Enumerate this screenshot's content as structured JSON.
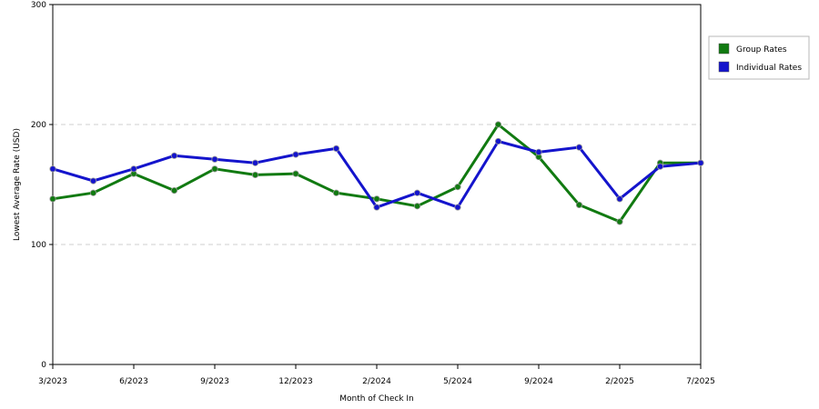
{
  "chart_data": {
    "type": "line",
    "title": "",
    "xlabel": "Month of Check In",
    "ylabel": "Lowest Average Rate (USD)",
    "ylim": [
      0,
      300
    ],
    "yticks": [
      "0",
      "100",
      "200",
      "300"
    ],
    "y_gridlines": [
      100,
      200
    ],
    "xtick_labels": [
      "3/2023",
      "6/2023",
      "9/2023",
      "12/2023",
      "2/2024",
      "5/2024",
      "9/2024",
      "2/2025",
      "7/2025"
    ],
    "legend_position": "right",
    "series": [
      {
        "name": "Group Rates",
        "color": "#117a11",
        "values": [
          138,
          143,
          159,
          145,
          163,
          158,
          159,
          143,
          138,
          132,
          148,
          200,
          173,
          133,
          119,
          168,
          168
        ]
      },
      {
        "name": "Individual Rates",
        "color": "#1414cc",
        "values": [
          163,
          153,
          163,
          174,
          171,
          168,
          175,
          180,
          131,
          143,
          131,
          186,
          177,
          181,
          138,
          165,
          168
        ]
      }
    ]
  }
}
